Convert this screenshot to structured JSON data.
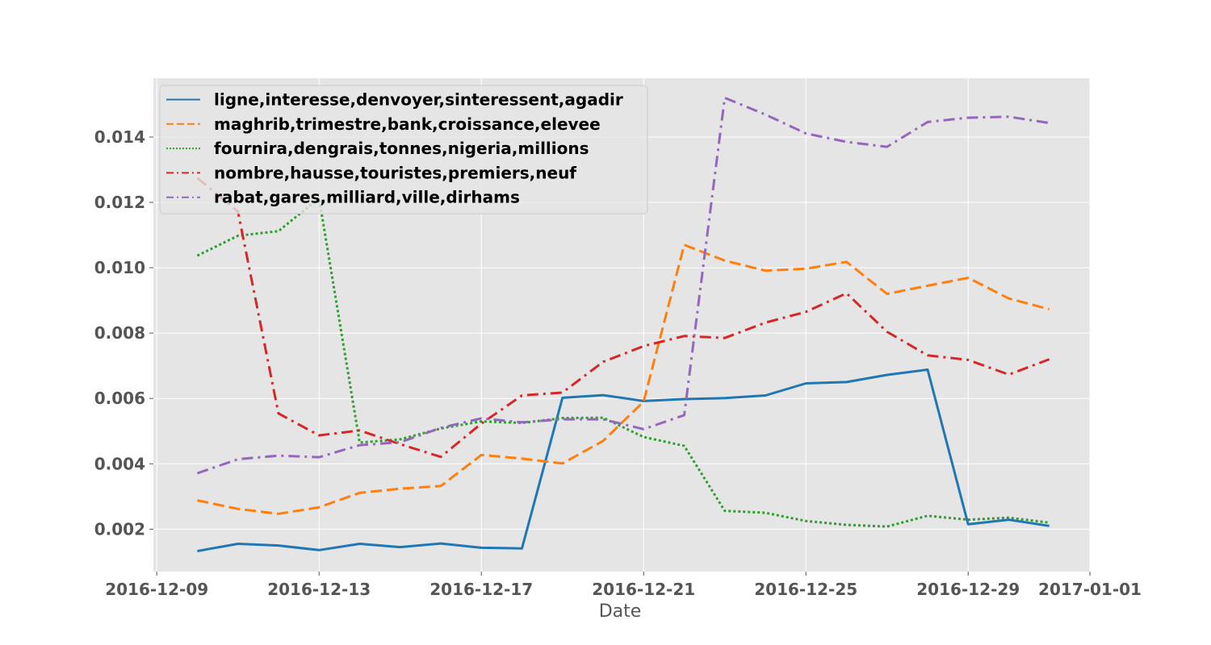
{
  "chart_data": {
    "type": "line",
    "title": "",
    "xlabel": "Date",
    "ylabel": "",
    "x_tick_labels": [
      "2016-12-09",
      "2016-12-13",
      "2016-12-17",
      "2016-12-21",
      "2016-12-25",
      "2016-12-29",
      "2017-01-01"
    ],
    "y_tick_labels": [
      "0.002",
      "0.004",
      "0.006",
      "0.008",
      "0.010",
      "0.012",
      "0.014"
    ],
    "xlim": [
      "2016-12-08T22:00",
      "2017-01-01T00:00"
    ],
    "ylim": [
      0.0007,
      0.0158
    ],
    "grid": true,
    "legend_position": "upper-left",
    "x": [
      "2016-12-10",
      "2016-12-11",
      "2016-12-12",
      "2016-12-13",
      "2016-12-14",
      "2016-12-15",
      "2016-12-16",
      "2016-12-17",
      "2016-12-18",
      "2016-12-19",
      "2016-12-20",
      "2016-12-21",
      "2016-12-22",
      "2016-12-23",
      "2016-12-24",
      "2016-12-25",
      "2016-12-26",
      "2016-12-27",
      "2016-12-28",
      "2016-12-29",
      "2016-12-30",
      "2016-12-31"
    ],
    "series": [
      {
        "name": "ligne,interesse,denvoyer,sinteressent,agadir",
        "color": "#1f77b4",
        "style": "solid",
        "values": [
          0.00133,
          0.00155,
          0.0015,
          0.00136,
          0.00155,
          0.00145,
          0.00156,
          0.00143,
          0.00141,
          0.00602,
          0.0061,
          0.00592,
          0.00598,
          0.00601,
          0.00609,
          0.00646,
          0.0065,
          0.00672,
          0.00688,
          0.00215,
          0.00229,
          0.0021
        ]
      },
      {
        "name": "maghrib,trimestre,bank,croissance,elevee",
        "color": "#ff7f0e",
        "style": "dashed",
        "values": [
          0.00288,
          0.00262,
          0.00247,
          0.00267,
          0.00311,
          0.00324,
          0.00332,
          0.00427,
          0.00416,
          0.00401,
          0.0047,
          0.0059,
          0.0107,
          0.01022,
          0.00991,
          0.00997,
          0.01018,
          0.0092,
          0.00945,
          0.00969,
          0.00906,
          0.00873
        ]
      },
      {
        "name": "fournira,dengrais,tonnes,nigeria,millions",
        "color": "#2ca02c",
        "style": "dotted",
        "values": [
          0.01037,
          0.01098,
          0.01112,
          0.01213,
          0.00465,
          0.00475,
          0.00508,
          0.0053,
          0.00525,
          0.0054,
          0.00541,
          0.00482,
          0.00455,
          0.00256,
          0.0025,
          0.00225,
          0.00213,
          0.00208,
          0.00241,
          0.00229,
          0.00235,
          0.0022
        ]
      },
      {
        "name": "nombre,hausse,touristes,premiers,neuf",
        "color": "#d62728",
        "style": "dashdot",
        "values": [
          0.01275,
          0.01172,
          0.00554,
          0.00487,
          0.00502,
          0.0046,
          0.00421,
          0.00523,
          0.00609,
          0.00618,
          0.00712,
          0.0076,
          0.00791,
          0.00785,
          0.00832,
          0.00865,
          0.00922,
          0.00804,
          0.00732,
          0.00718,
          0.00673,
          0.0072
        ]
      },
      {
        "name": "rabat,gares,milliard,ville,dirhams",
        "color": "#9467bd",
        "style": "dashdot",
        "values": [
          0.00371,
          0.00414,
          0.00425,
          0.0042,
          0.00457,
          0.00466,
          0.0051,
          0.00539,
          0.00527,
          0.00536,
          0.00536,
          0.00506,
          0.00549,
          0.0152,
          0.01469,
          0.01411,
          0.01385,
          0.0137,
          0.01446,
          0.01459,
          0.01462,
          0.01443
        ]
      }
    ]
  }
}
